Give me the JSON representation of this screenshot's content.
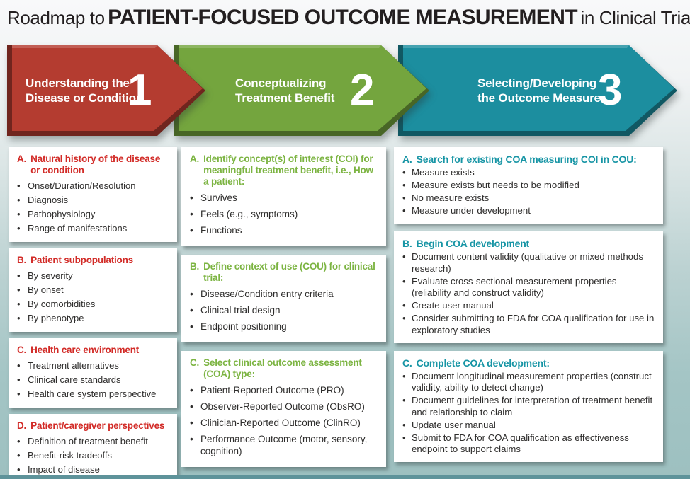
{
  "title": {
    "prefix": "Roadmap to",
    "emphasis": "PATIENT-FOCUSED OUTCOME MEASUREMENT",
    "suffix": "in Clinical Trials"
  },
  "colors": {
    "title_text": "#231F20",
    "body_text": "#2E2D2C",
    "card_background": "#FFFFFF",
    "background_top": "#F8F9FA",
    "background_bottom": "#9DC0C0",
    "bottom_bar": "#5E939A",
    "step1_arrow": "#B43C30",
    "step2_arrow": "#74A53E",
    "step3_arrow": "#1C8E9F",
    "step1_heading": "#D22B27",
    "step2_heading": "#7CB442",
    "step3_heading": "#1795A5"
  },
  "steps": [
    {
      "number": "1",
      "label_lines": [
        "Understanding the",
        "Disease or Condition"
      ],
      "arrow_color": "#B43C30",
      "heading_color": "#D22B27",
      "cards": [
        {
          "marker": "A.",
          "heading": "Natural history of the disease or condition",
          "bullets": [
            "Onset/Duration/Resolution",
            "Diagnosis",
            "Pathophysiology",
            "Range of manifestations"
          ]
        },
        {
          "marker": "B.",
          "heading": "Patient subpopulations",
          "bullets": [
            "By severity",
            "By onset",
            "By comorbidities",
            "By phenotype"
          ]
        },
        {
          "marker": "C.",
          "heading": "Health care environment",
          "bullets": [
            "Treatment alternatives",
            "Clinical care standards",
            "Health care system perspective"
          ]
        },
        {
          "marker": "D.",
          "heading": "Patient/caregiver perspectives",
          "bullets": [
            "Definition of treatment benefit",
            "Benefit-risk tradeoffs",
            "Impact of disease"
          ]
        }
      ]
    },
    {
      "number": "2",
      "label_lines": [
        "Conceptualizing",
        "Treatment Benefit"
      ],
      "arrow_color": "#74A53E",
      "heading_color": "#7CB442",
      "cards": [
        {
          "marker": "A.",
          "heading": "Identify concept(s) of interest (COI) for meaningful treatment benefit, i.e., How a patient:",
          "bullets": [
            "Survives",
            "Feels (e.g., symptoms)",
            "Functions"
          ]
        },
        {
          "marker": "B.",
          "heading": "Define context of use (COU) for clinical trial:",
          "bullets": [
            "Disease/Condition entry criteria",
            "Clinical trial design",
            "Endpoint positioning"
          ]
        },
        {
          "marker": "C.",
          "heading": "Select clinical outcome assessment (COA) type:",
          "bullets": [
            "Patient-Reported Outcome (PRO)",
            "Observer-Reported Outcome (ObsRO)",
            "Clinician-Reported Outcome (ClinRO)",
            "Performance Outcome (motor, sensory, cognition)"
          ]
        }
      ]
    },
    {
      "number": "3",
      "label_lines": [
        "Selecting/Developing",
        "the Outcome Measure"
      ],
      "arrow_color": "#1C8E9F",
      "heading_color": "#1795A5",
      "cards": [
        {
          "marker": "A.",
          "heading": "Search for existing COA measuring COI in COU:",
          "bullets": [
            "Measure exists",
            "Measure exists but needs to be modified",
            "No measure exists",
            "Measure under development"
          ]
        },
        {
          "marker": "B.",
          "heading": "Begin COA development",
          "bullets": [
            "Document content validity (qualitative or mixed methods research)",
            "Evaluate cross-sectional measurement properties (reliability and construct validity)",
            "Create user manual",
            "Consider submitting to FDA for COA qualification for use in exploratory studies"
          ]
        },
        {
          "marker": "C.",
          "heading": "Complete COA development:",
          "bullets": [
            "Document longitudinal measurement properties (construct validity, ability to detect change)",
            "Document guidelines for interpretation of treatment benefit and relationship to claim",
            "Update user manual",
            "Submit to FDA for COA qualification as effectiveness endpoint to support claims"
          ]
        }
      ]
    }
  ]
}
